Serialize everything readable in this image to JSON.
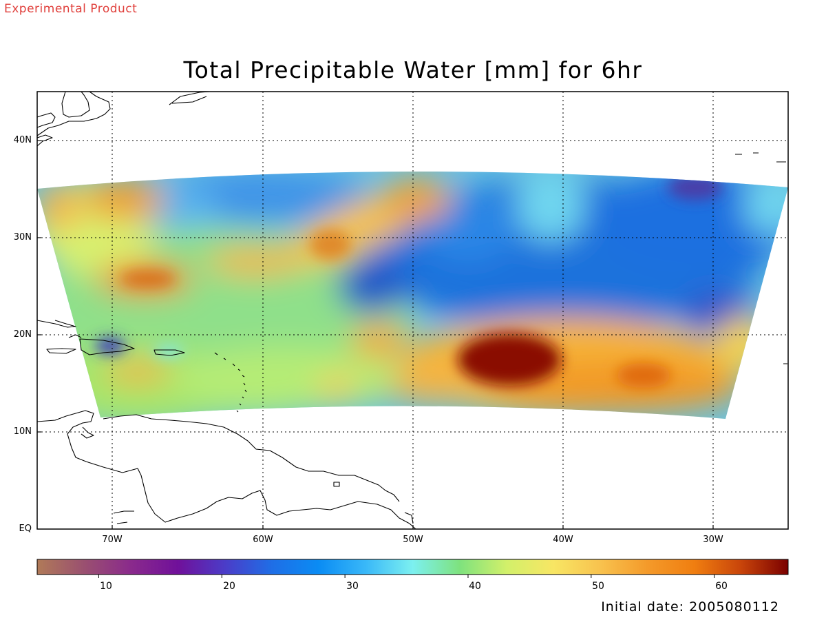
{
  "header": {
    "badge": "Experimental Product",
    "title": "Total Precipitable Water [mm] for 6hr"
  },
  "footer": {
    "initial_date": "Initial date: 2005080112"
  },
  "map": {
    "lat_ticks": [
      "40N",
      "30N",
      "20N",
      "10N",
      "EQ"
    ],
    "lon_ticks": [
      "70W",
      "60W",
      "50W",
      "40W",
      "30W"
    ],
    "lat_range": [
      0,
      45
    ],
    "lon_range": [
      -75,
      -25
    ],
    "swath_lat_range": [
      12,
      37
    ],
    "grid": "dotted"
  },
  "colorbar": {
    "range": [
      5,
      66
    ],
    "ticks": [
      "10",
      "20",
      "30",
      "40",
      "50",
      "60"
    ],
    "stops": [
      "#b07a58",
      "#9a5070",
      "#8a2a8c",
      "#70109a",
      "#4b3cc8",
      "#1f6ee6",
      "#0a8cf4",
      "#39b8f8",
      "#7cf0f0",
      "#7ee27e",
      "#d2f06a",
      "#f8e664",
      "#f8c24e",
      "#f49a2a",
      "#f07e10",
      "#c8440a",
      "#7a0000"
    ]
  },
  "chart_data": {
    "type": "heatmap",
    "title": "Total Precipitable Water [mm] for 6hr",
    "unit": "mm",
    "features": [
      {
        "name": "moist core",
        "lon": -43.5,
        "lat": 16.5,
        "value": 66
      },
      {
        "name": "moist band",
        "lon": -38,
        "lat": 16,
        "value": 57
      },
      {
        "name": "moist band",
        "lon": -33,
        "lat": 15,
        "value": 56
      },
      {
        "name": "moist patch",
        "lon": -55,
        "lat": 29,
        "value": 55
      },
      {
        "name": "moist patch",
        "lon": -60,
        "lat": 27.5,
        "value": 54
      },
      {
        "name": "moist patch",
        "lon": -68,
        "lat": 25.5,
        "value": 56
      },
      {
        "name": "moist patch",
        "lon": -69.5,
        "lat": 34.5,
        "value": 55
      },
      {
        "name": "moist patch",
        "lon": -52,
        "lat": 19.5,
        "value": 53
      },
      {
        "name": "dry patch",
        "lon": -53,
        "lat": 25,
        "value": 27
      },
      {
        "name": "dry patch",
        "lon": -31,
        "lat": 35,
        "value": 20
      },
      {
        "name": "dry patch",
        "lon": -71,
        "lat": 19.2,
        "value": 20
      },
      {
        "name": "dry region",
        "lon": -35,
        "lat": 28,
        "value": 28
      }
    ]
  }
}
